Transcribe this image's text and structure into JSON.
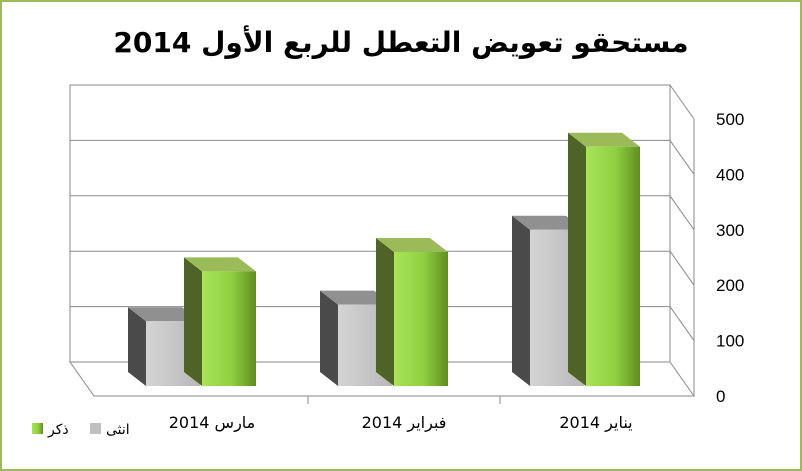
{
  "chart_data": {
    "type": "bar",
    "title": "مستحقو تعويض التعطل للربع الأول 2014",
    "categories": [
      "يناير 2014",
      "فبراير 2014",
      "مارس 2014"
    ],
    "series": [
      {
        "name": "انثى",
        "values": [
          300,
          165,
          135
        ],
        "color": "#c8c8c8",
        "side_color": "#4a4a4a",
        "top_color": "#909090"
      },
      {
        "name": "ذكر",
        "values": [
          450,
          260,
          225
        ],
        "color": "#92d050",
        "side_color": "#4f6228",
        "top_color": "#9bbb59"
      }
    ],
    "yticks": [
      "0",
      "100",
      "200",
      "300",
      "400",
      "500"
    ],
    "ylim": [
      0,
      500
    ],
    "grid": true,
    "legend_position": "bottom-left"
  }
}
